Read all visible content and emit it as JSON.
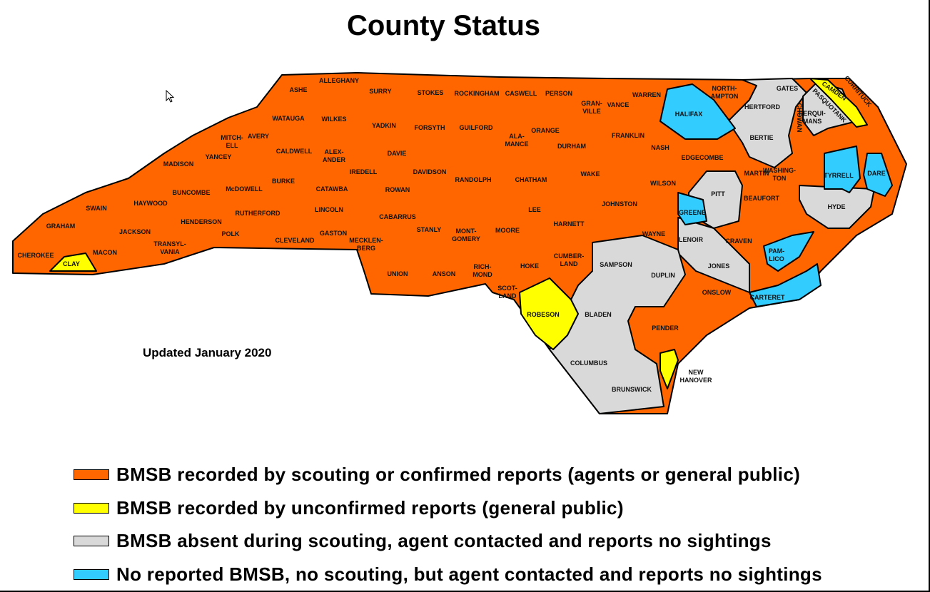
{
  "title": "County Status",
  "updated": "Updated January 2020",
  "colors": {
    "confirmed": "#FF6600",
    "unconfirmed": "#FFFF00",
    "absent": "#D9D9D9",
    "no_report": "#33CCFF"
  },
  "legend": [
    {
      "label": "BMSB recorded by scouting or confirmed reports (agents or general public)",
      "status": "confirmed"
    },
    {
      "label": "BMSB recorded by unconfirmed reports (general public)",
      "status": "unconfirmed"
    },
    {
      "label": "BMSB absent during scouting, agent contacted and reports no sightings",
      "status": "absent"
    },
    {
      "label": "No reported BMSB, no scouting, but agent contacted and reports no sightings",
      "status": "no_report"
    }
  ],
  "counties_unconfirmed": [
    "CLAY",
    "ROBESON",
    "NEW HANOVER",
    "CAMDEN"
  ],
  "counties_absent": [
    "GATES",
    "HERTFORD",
    "BERTIE",
    "PASQUOTANK",
    "PERQUIMANS",
    "CURRITUCK",
    "PITT",
    "LENOIR",
    "JONES",
    "HYDE",
    "SAMPSON",
    "DUPLIN",
    "BLADEN",
    "COLUMBUS",
    "BRUNSWICK"
  ],
  "counties_no_report": [
    "HALIFAX",
    "GREENE",
    "TYRRELL",
    "DARE",
    "PAMLICO",
    "CARTERET"
  ],
  "county_labels": [
    "ASHE",
    "ALLEGHANY",
    "SURRY",
    "STOKES",
    "ROCKINGHAM",
    "CASWELL",
    "PERSON",
    "GRAN-|VILLE",
    "VANCE",
    "WARREN",
    "NORTH-|AMPTON",
    "GATES",
    "HERTFORD",
    "CAMDEN",
    "CURRITUCK",
    "PASQUOTANK",
    "PERQUI-|MANS",
    "CHOWAN",
    "WATAUGA",
    "WILKES",
    "YADKIN",
    "FORSYTH",
    "GUILFORD",
    "ALA-|MANCE",
    "ORANGE",
    "DURHAM",
    "FRANKLIN",
    "HALIFAX",
    "BERTIE",
    "MITCH-|ELL",
    "AVERY",
    "CALDWELL",
    "ALEX-|ANDER",
    "DAVIE",
    "NASH",
    "EDGECOMBE",
    "MARTIN",
    "WASHING-|TON",
    "TYRRELL",
    "DARE",
    "MADISON",
    "YANCEY",
    "IREDELL",
    "DAVIDSON",
    "RANDOLPH",
    "CHATHAM",
    "WAKE",
    "WILSON",
    "PITT",
    "BEAUFORT",
    "HYDE",
    "BUNCOMBE",
    "McDOWELL",
    "BURKE",
    "CATAWBA",
    "ROWAN",
    "SWAIN",
    "HAYWOOD",
    "LINCOLN",
    "LEE",
    "JOHNSTON",
    "GREENE",
    "GRAHAM",
    "HENDERSON",
    "RUTHERFORD",
    "CABARRUS",
    "STANLY",
    "MONT-|GOMERY",
    "MOORE",
    "HARNETT",
    "WAYNE",
    "LENOIR",
    "CRAVEN",
    "JACKSON",
    "POLK",
    "TRANSYL-|VANIA",
    "CLEVELAND",
    "GASTON",
    "MECKLEN-|BERG",
    "PAM-|LICO",
    "CHEROKEE",
    "MACON",
    "CLAY",
    "CUMBER-|LAND",
    "HOKE",
    "SAMPSON",
    "RICH-|MOND",
    "JONES",
    "UNION",
    "ANSON",
    "DUPLIN",
    "SCOT-|LAND",
    "ONSLOW",
    "CARTERET",
    "ROBESON",
    "BLADEN",
    "PENDER",
    "COLUMBUS",
    "NEW|HANOVER",
    "BRUNSWICK"
  ]
}
